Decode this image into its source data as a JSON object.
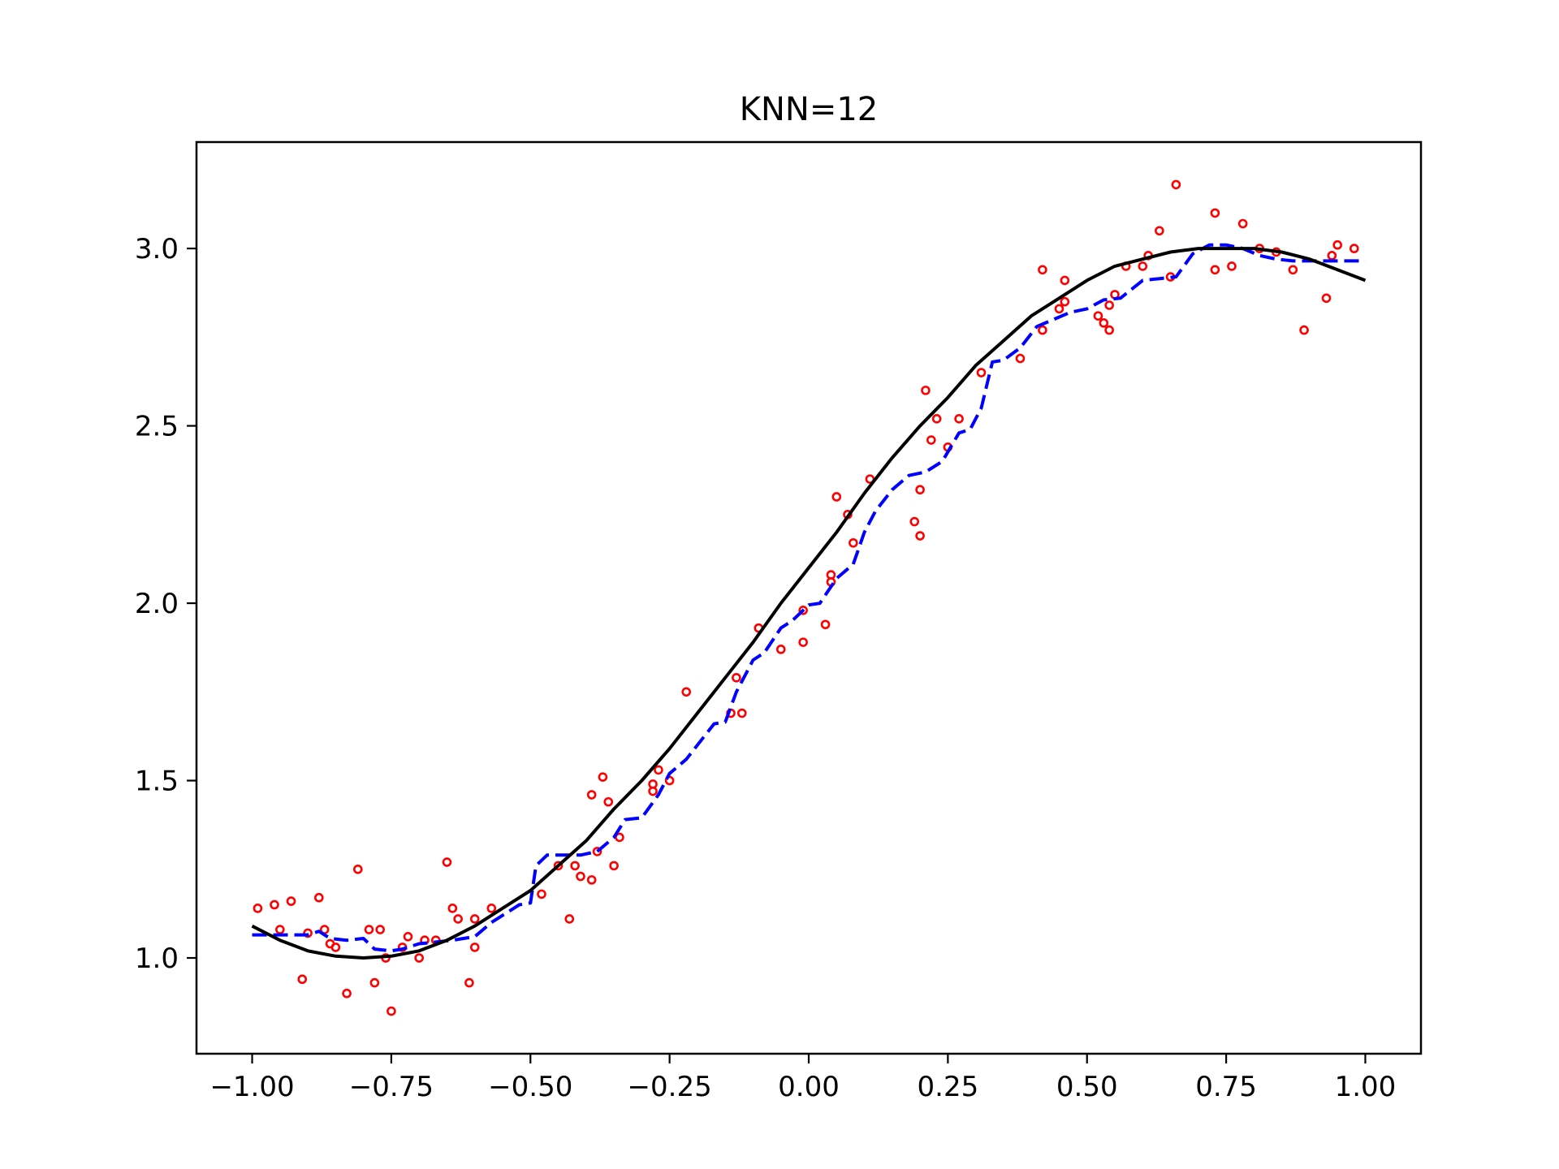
{
  "chart_data": {
    "type": "line",
    "title": "KNN=12",
    "xlabel": "",
    "ylabel": "",
    "xlim": [
      -1.1,
      1.1
    ],
    "ylim": [
      0.73,
      3.3
    ],
    "x_ticks": [
      -1.0,
      -0.75,
      -0.5,
      -0.25,
      0.0,
      0.25,
      0.5,
      0.75,
      1.0
    ],
    "x_tick_labels": [
      "−1.00",
      "−0.75",
      "−0.50",
      "−0.25",
      "0.00",
      "0.25",
      "0.50",
      "0.75",
      "1.00"
    ],
    "y_ticks": [
      1.0,
      1.5,
      2.0,
      2.5,
      3.0
    ],
    "y_tick_labels": [
      "1.0",
      "1.5",
      "2.0",
      "2.5",
      "3.0"
    ],
    "grid": false,
    "legend": null,
    "colors": {
      "true_curve": "#000000",
      "knn_fit": "#0000ff",
      "samples": "#ff0000"
    },
    "series": [
      {
        "role": "true_curve",
        "style": "solid",
        "x": [
          -1.0,
          -0.95,
          -0.9,
          -0.85,
          -0.8,
          -0.75,
          -0.7,
          -0.65,
          -0.6,
          -0.55,
          -0.5,
          -0.45,
          -0.4,
          -0.35,
          -0.3,
          -0.25,
          -0.2,
          -0.15,
          -0.1,
          -0.05,
          0.0,
          0.05,
          0.1,
          0.15,
          0.2,
          0.25,
          0.3,
          0.35,
          0.4,
          0.45,
          0.5,
          0.55,
          0.6,
          0.65,
          0.7,
          0.75,
          0.8,
          0.85,
          0.9,
          0.95,
          1.0
        ],
        "y": [
          1.09,
          1.05,
          1.02,
          1.005,
          1.0,
          1.005,
          1.02,
          1.05,
          1.09,
          1.14,
          1.19,
          1.26,
          1.33,
          1.42,
          1.5,
          1.59,
          1.69,
          1.79,
          1.89,
          2.0,
          2.1,
          2.2,
          2.31,
          2.41,
          2.5,
          2.58,
          2.67,
          2.74,
          2.81,
          2.86,
          2.91,
          2.95,
          2.97,
          2.99,
          3.0,
          3.0,
          3.0,
          2.99,
          2.97,
          2.94,
          2.91
        ]
      },
      {
        "role": "knn_fit",
        "style": "dashed",
        "x": [
          -1.0,
          -0.95,
          -0.9,
          -0.88,
          -0.86,
          -0.83,
          -0.8,
          -0.78,
          -0.75,
          -0.73,
          -0.7,
          -0.67,
          -0.64,
          -0.6,
          -0.57,
          -0.54,
          -0.52,
          -0.5,
          -0.49,
          -0.47,
          -0.44,
          -0.41,
          -0.38,
          -0.35,
          -0.33,
          -0.3,
          -0.27,
          -0.25,
          -0.22,
          -0.2,
          -0.17,
          -0.15,
          -0.13,
          -0.1,
          -0.08,
          -0.05,
          -0.03,
          0.0,
          0.02,
          0.05,
          0.08,
          0.1,
          0.12,
          0.15,
          0.18,
          0.21,
          0.24,
          0.27,
          0.29,
          0.31,
          0.33,
          0.35,
          0.38,
          0.41,
          0.44,
          0.47,
          0.5,
          0.53,
          0.56,
          0.6,
          0.63,
          0.66,
          0.69,
          0.72,
          0.75,
          0.78,
          0.81,
          0.84,
          0.87,
          0.9,
          0.94,
          1.0
        ],
        "y": [
          1.065,
          1.065,
          1.065,
          1.075,
          1.055,
          1.05,
          1.055,
          1.025,
          1.02,
          1.025,
          1.04,
          1.045,
          1.05,
          1.06,
          1.1,
          1.13,
          1.15,
          1.155,
          1.26,
          1.29,
          1.29,
          1.29,
          1.3,
          1.34,
          1.39,
          1.395,
          1.46,
          1.52,
          1.56,
          1.6,
          1.66,
          1.665,
          1.75,
          1.84,
          1.86,
          1.93,
          1.95,
          1.995,
          2.0,
          2.07,
          2.11,
          2.2,
          2.26,
          2.32,
          2.36,
          2.37,
          2.4,
          2.48,
          2.49,
          2.55,
          2.68,
          2.685,
          2.72,
          2.78,
          2.8,
          2.82,
          2.83,
          2.855,
          2.86,
          2.91,
          2.915,
          2.92,
          2.985,
          3.01,
          3.01,
          3.0,
          2.98,
          2.97,
          2.965,
          2.965,
          2.965,
          2.965
        ]
      },
      {
        "role": "samples",
        "style": "scatter",
        "x": [
          -0.99,
          -0.96,
          -0.95,
          -0.93,
          -0.91,
          -0.9,
          -0.88,
          -0.87,
          -0.86,
          -0.85,
          -0.83,
          -0.81,
          -0.79,
          -0.78,
          -0.77,
          -0.76,
          -0.75,
          -0.73,
          -0.72,
          -0.7,
          -0.69,
          -0.67,
          -0.65,
          -0.64,
          -0.63,
          -0.61,
          -0.6,
          -0.6,
          -0.57,
          -0.48,
          -0.45,
          -0.43,
          -0.42,
          -0.41,
          -0.39,
          -0.39,
          -0.38,
          -0.37,
          -0.36,
          -0.35,
          -0.34,
          -0.28,
          -0.28,
          -0.27,
          -0.25,
          -0.22,
          -0.14,
          -0.13,
          -0.12,
          -0.09,
          -0.05,
          -0.01,
          -0.01,
          0.03,
          0.04,
          0.04,
          0.05,
          0.07,
          0.08,
          0.11,
          0.19,
          0.2,
          0.2,
          0.21,
          0.22,
          0.23,
          0.25,
          0.27,
          0.31,
          0.38,
          0.42,
          0.42,
          0.45,
          0.46,
          0.46,
          0.52,
          0.53,
          0.54,
          0.54,
          0.55,
          0.57,
          0.6,
          0.61,
          0.63,
          0.65,
          0.66,
          0.73,
          0.73,
          0.76,
          0.78,
          0.81,
          0.84,
          0.87,
          0.89,
          0.93,
          0.94,
          0.95,
          0.98
        ],
        "y": [
          1.14,
          1.15,
          1.08,
          1.16,
          0.94,
          1.07,
          1.17,
          1.08,
          1.04,
          1.03,
          0.9,
          1.25,
          1.08,
          0.93,
          1.08,
          1.0,
          0.85,
          1.03,
          1.06,
          1.0,
          1.05,
          1.05,
          1.27,
          1.14,
          1.11,
          0.93,
          1.03,
          1.11,
          1.14,
          1.18,
          1.26,
          1.11,
          1.26,
          1.23,
          1.22,
          1.46,
          1.3,
          1.51,
          1.44,
          1.26,
          1.34,
          1.49,
          1.47,
          1.53,
          1.5,
          1.75,
          1.69,
          1.79,
          1.69,
          1.93,
          1.87,
          1.89,
          1.98,
          1.94,
          2.08,
          2.06,
          2.3,
          2.25,
          2.17,
          2.35,
          2.23,
          2.19,
          2.32,
          2.6,
          2.46,
          2.52,
          2.44,
          2.52,
          2.65,
          2.69,
          2.77,
          2.94,
          2.83,
          2.91,
          2.85,
          2.81,
          2.79,
          2.77,
          2.84,
          2.87,
          2.95,
          2.95,
          2.98,
          3.05,
          2.92,
          3.18,
          2.94,
          3.1,
          2.95,
          3.07,
          3.0,
          2.99,
          2.94,
          2.77,
          2.86,
          2.98,
          3.01,
          3.0
        ]
      }
    ]
  }
}
